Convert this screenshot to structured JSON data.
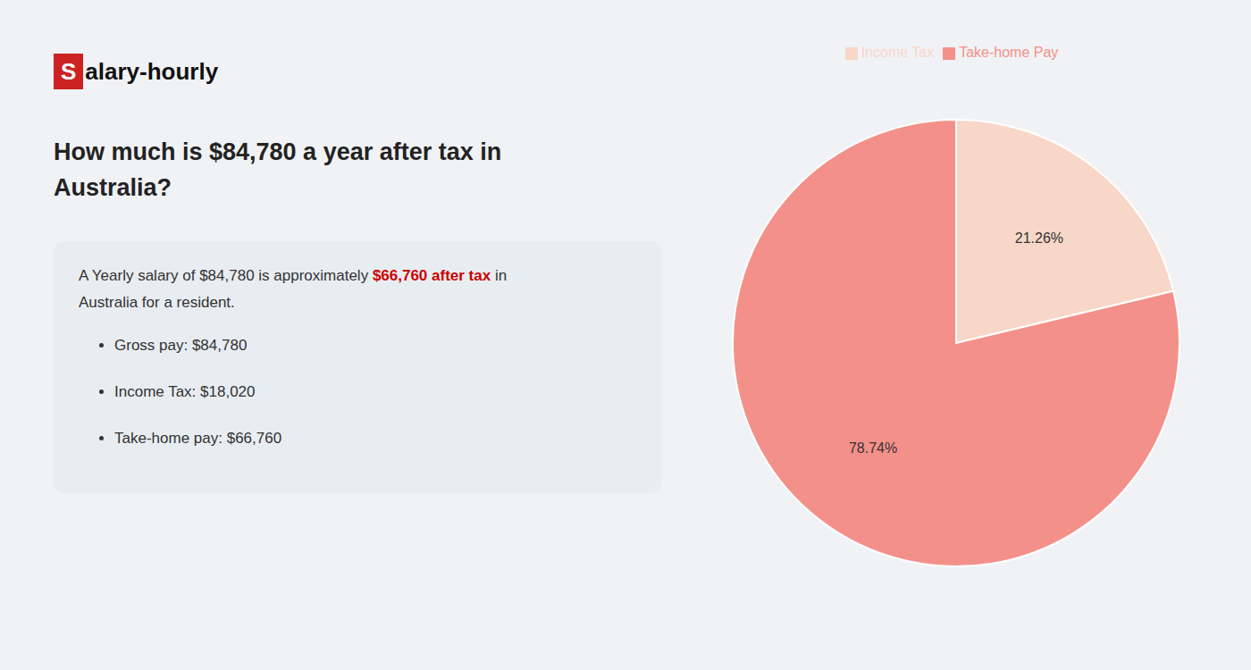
{
  "chart_data": {
    "type": "pie",
    "title": [
      "How much is $84,780 a year after tax in",
      "Australia?"
    ],
    "categories": [
      "Income Tax",
      "Take-home Pay"
    ],
    "values": [
      21.26,
      78.74
    ],
    "value_labels": [
      "21.26%",
      "78.74%"
    ],
    "colors": [
      "#f8d7c8",
      "#f4908a"
    ],
    "data_labels": true,
    "legend": "top",
    "annotations": [
      [
        {
          "text": "S",
          "color": "#cc2222"
        },
        {
          "text": "alary-hourly"
        }
      ],
      [
        {
          "text": "A Yearly salary of $84,780 is approximately "
        },
        {
          "text": "$66,760 after tax",
          "color": "#cc0000"
        },
        {
          "text": " in"
        }
      ],
      [
        {
          "text": "Australia for a resident."
        }
      ],
      [
        {
          "text": "Gross pay: $84,780"
        }
      ],
      [
        {
          "text": "Income Tax: $18,020"
        }
      ],
      [
        {
          "text": "Take-home pay: $66,760"
        }
      ]
    ]
  }
}
